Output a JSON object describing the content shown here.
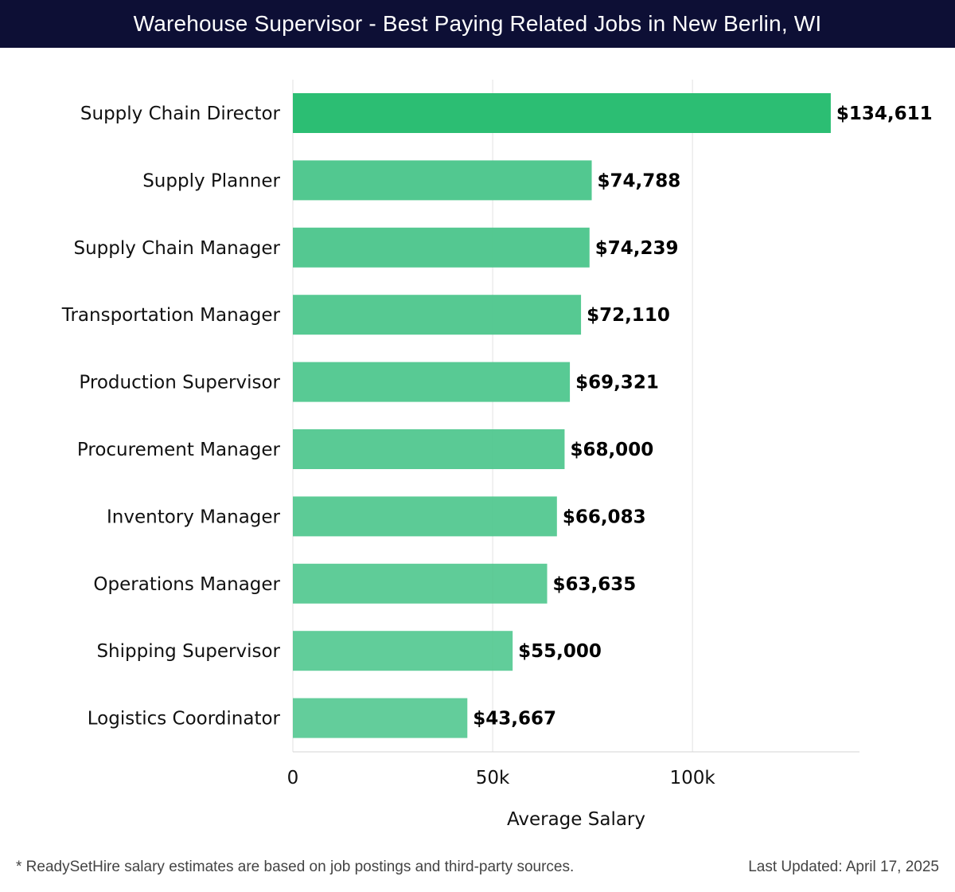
{
  "header": {
    "title": "Warehouse Supervisor - Best Paying Related Jobs in New Berlin, WI"
  },
  "chart_data": {
    "type": "bar",
    "orientation": "horizontal",
    "title": "Warehouse Supervisor - Best Paying Related Jobs in New Berlin, WI",
    "categories": [
      "Supply Chain Director",
      "Supply Planner",
      "Supply Chain Manager",
      "Transportation Manager",
      "Production Supervisor",
      "Procurement Manager",
      "Inventory Manager",
      "Operations Manager",
      "Shipping Supervisor",
      "Logistics Coordinator"
    ],
    "values": [
      134611,
      74788,
      74239,
      72110,
      69321,
      68000,
      66083,
      63635,
      55000,
      43667
    ],
    "value_labels": [
      "$134,611",
      "$74,788",
      "$74,239",
      "$72,110",
      "$69,321",
      "$68,000",
      "$66,083",
      "$63,635",
      "$55,000",
      "$43,667"
    ],
    "xlabel": "Average Salary",
    "ylabel": "",
    "xlim": [
      0,
      141800
    ],
    "ticks": [
      0,
      50000,
      100000
    ],
    "tick_labels": [
      "0",
      "50k",
      "100k"
    ],
    "grid": true,
    "colors": {
      "top": "#2cbe73",
      "other": "#4cc68c",
      "grid": "#e2e2e2"
    }
  },
  "footer": {
    "note": "* ReadySetHire salary estimates are based on job postings and third-party sources.",
    "updated": "Last Updated: April 17, 2025"
  }
}
